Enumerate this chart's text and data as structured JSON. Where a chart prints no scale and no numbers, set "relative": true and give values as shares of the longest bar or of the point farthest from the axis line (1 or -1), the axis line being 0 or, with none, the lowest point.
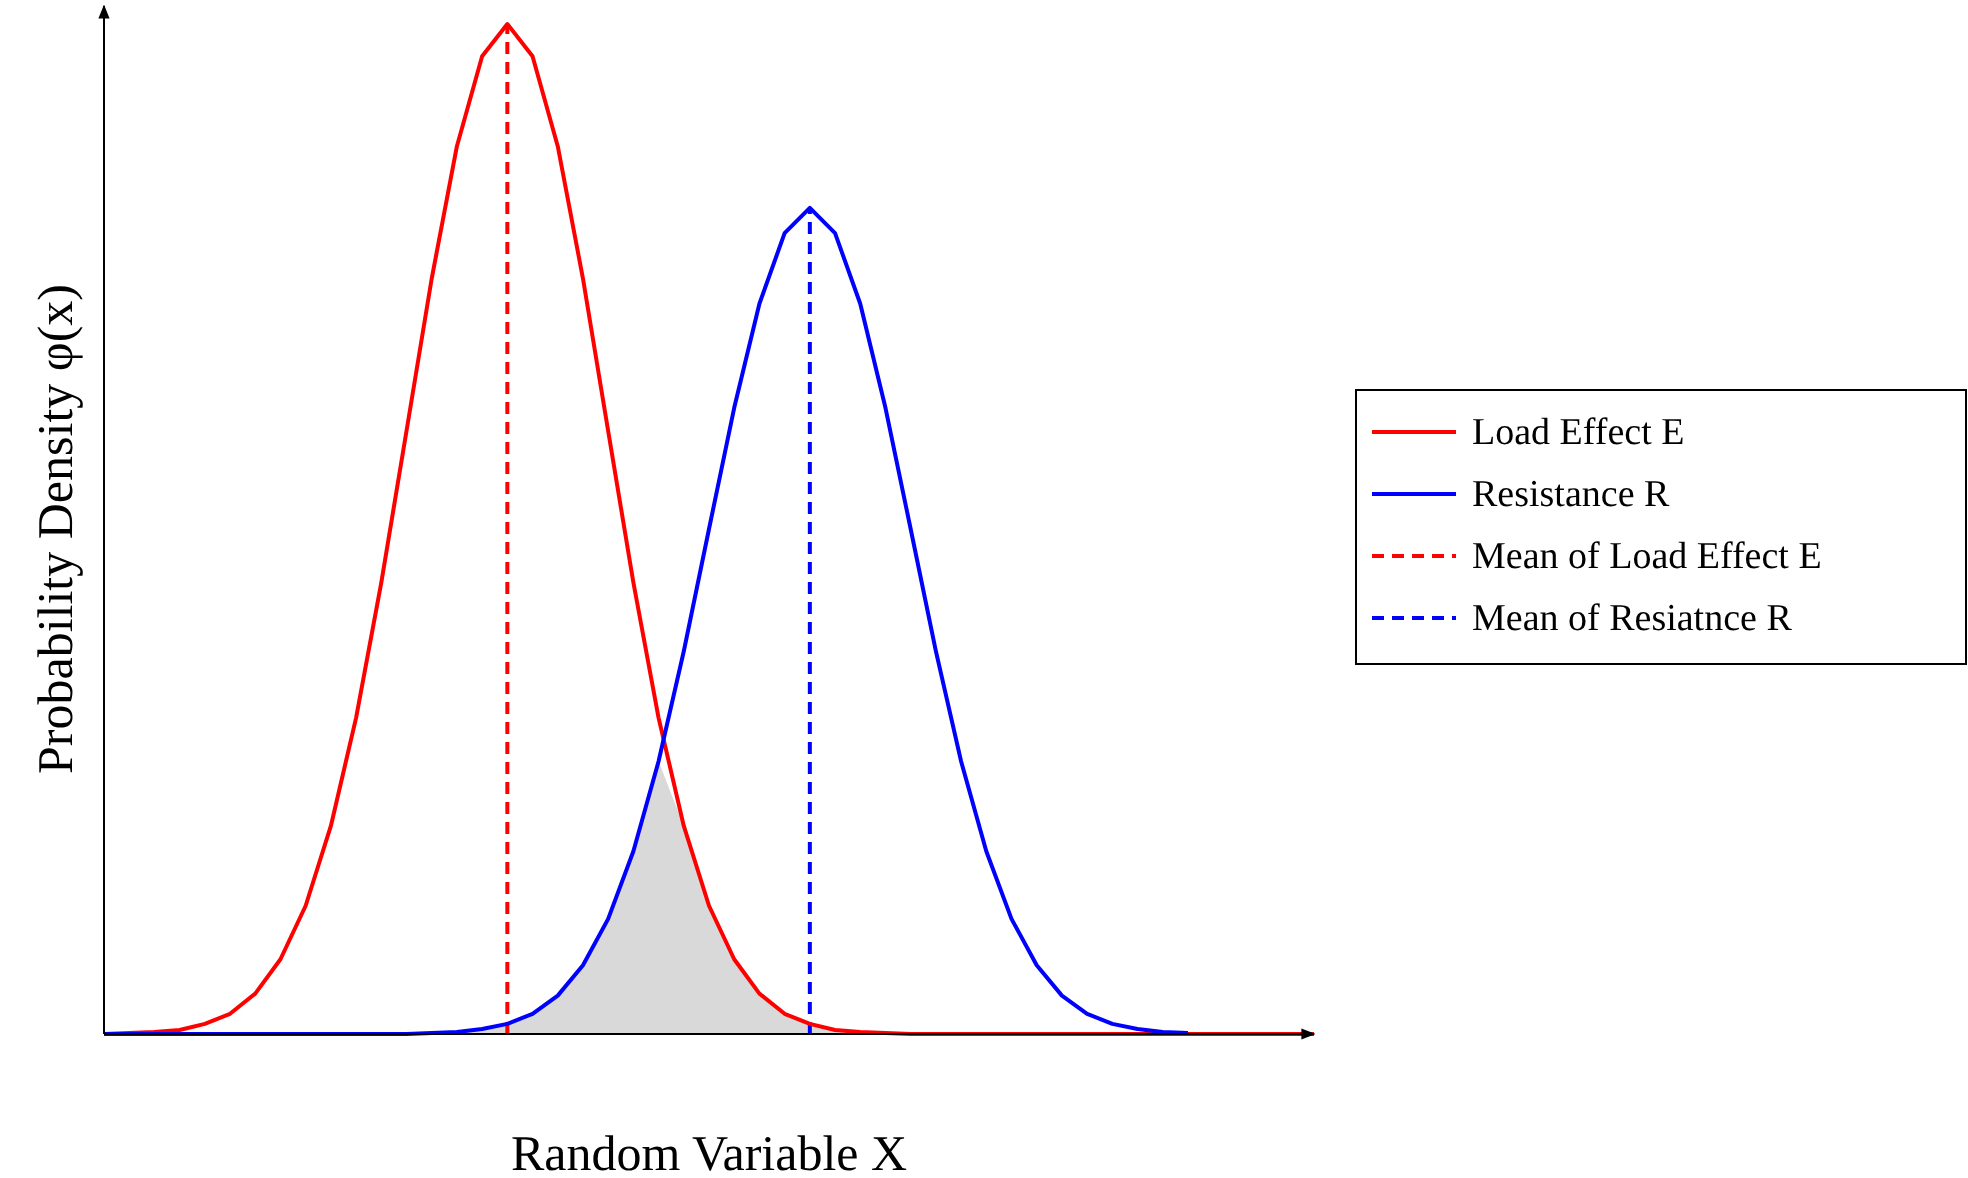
{
  "chart_data": {
    "type": "line",
    "relative": true,
    "xlabel": "Random Variable X",
    "ylabel": "Probability Density φ(x)",
    "legend": "right",
    "categories": [
      null,
      null,
      null,
      null,
      null,
      null,
      null,
      null,
      null,
      null,
      null,
      null,
      null,
      null,
      null,
      null,
      null,
      null,
      null,
      null,
      null,
      null,
      null,
      null,
      null,
      null,
      null,
      null,
      null,
      null,
      null,
      null,
      null,
      null,
      null,
      null,
      null,
      null,
      null,
      null,
      null,
      null,
      null,
      null,
      null,
      null,
      null,
      null,
      null
    ],
    "series": [
      {
        "type": "area",
        "color": "#d9d9d9",
        "values": [
          null,
          null,
          null,
          null,
          null,
          null,
          null,
          null,
          null,
          null,
          null,
          null,
          null,
          0.001,
          0.002,
          0.005,
          0.01,
          0.02,
          0.038,
          0.068,
          0.114,
          0.181,
          0.27,
          0.206,
          0.127,
          0.074,
          0.04,
          0.02,
          0.01,
          0.004,
          0.002,
          0.001,
          null,
          null,
          null,
          null,
          null,
          null,
          null,
          null,
          null,
          null,
          null,
          null,
          null,
          null,
          null,
          null,
          null
        ]
      },
      {
        "name": "Load Effect E",
        "color": "#ff0000",
        "values": [
          0,
          0.001,
          0.002,
          0.004,
          0.01,
          0.02,
          0.04,
          0.074,
          0.127,
          0.206,
          0.313,
          0.447,
          0.597,
          0.748,
          0.879,
          0.968,
          1,
          0.968,
          0.879,
          0.748,
          0.597,
          0.447,
          0.313,
          0.206,
          0.127,
          0.074,
          0.04,
          0.02,
          0.01,
          0.004,
          0.002,
          0.001,
          0,
          0,
          0,
          0,
          0,
          0,
          0,
          0,
          0,
          0,
          0,
          0,
          0,
          0,
          0,
          0,
          0
        ]
      },
      {
        "name": "Resistance R",
        "color": "#0000ff",
        "values": [
          0,
          0,
          0,
          0,
          0,
          0,
          0,
          0,
          0,
          0,
          0,
          0,
          0,
          0.001,
          0.002,
          0.005,
          0.01,
          0.02,
          0.038,
          0.068,
          0.114,
          0.181,
          0.27,
          0.379,
          0.5,
          0.62,
          0.723,
          0.793,
          0.818,
          0.793,
          0.723,
          0.62,
          0.5,
          0.379,
          0.27,
          0.181,
          0.114,
          0.068,
          0.038,
          0.02,
          0.01,
          0.005,
          0.002,
          0.001,
          null,
          null,
          null,
          null,
          null
        ]
      }
    ],
    "annotations": [
      "Mean of Load Effect E",
      "Mean of Resiatnce R"
    ]
  }
}
